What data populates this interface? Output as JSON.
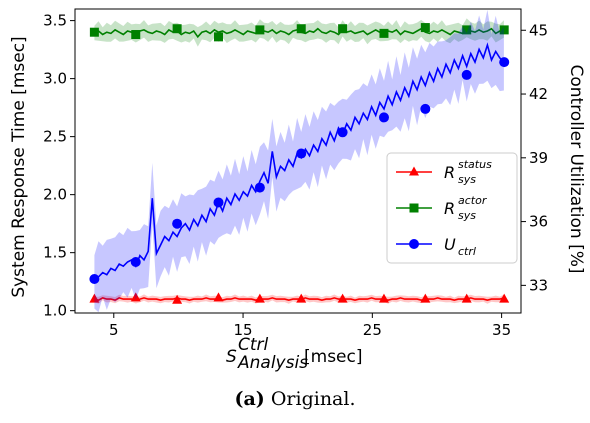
{
  "caption": {
    "label": "(a)",
    "text": "Original."
  },
  "chart_data": {
    "type": "line",
    "xlabel": {
      "main": "S",
      "sup": "Ctrl",
      "sub": "Analysis",
      "unit": "[msec]"
    },
    "ylabel_left": "System Response Time [msec]",
    "ylabel_right": "Controller Utilization [%]",
    "xlim": [
      2.0,
      36.5
    ],
    "ylim_left": [
      0.98,
      3.6
    ],
    "ylim_right": [
      31.7,
      46.0
    ],
    "xticks": [
      5,
      15,
      25,
      35
    ],
    "yticks_left": [
      "1.0",
      "1.5",
      "2.0",
      "2.5",
      "3.0",
      "3.5"
    ],
    "yticks_right": [
      "33",
      "36",
      "39",
      "42",
      "45"
    ],
    "legend_position": "center-right",
    "grid": false,
    "series": [
      {
        "name": "R",
        "name_sub": "sys",
        "name_sup": "status",
        "axis": "left",
        "color": "#ff0000",
        "marker": "triangle",
        "band_halfwidth": 0.025,
        "x_start": 3.5,
        "x_step": 0.32,
        "values": [
          1.1,
          1.09,
          1.11,
          1.1,
          1.1,
          1.09,
          1.11,
          1.1,
          1.1,
          1.1,
          1.09,
          1.1,
          1.11,
          1.1,
          1.1,
          1.1,
          1.09,
          1.1,
          1.1,
          1.1,
          1.11,
          1.1,
          1.1,
          1.09,
          1.1,
          1.1,
          1.1,
          1.11,
          1.1,
          1.1,
          1.1,
          1.09,
          1.1,
          1.1,
          1.11,
          1.1,
          1.1,
          1.1,
          1.1,
          1.09,
          1.1,
          1.1,
          1.1,
          1.11,
          1.1,
          1.1,
          1.1,
          1.09,
          1.1,
          1.1,
          1.1,
          1.11,
          1.1,
          1.1,
          1.1,
          1.09,
          1.1,
          1.1,
          1.11,
          1.1,
          1.1,
          1.1,
          1.1,
          1.09,
          1.1,
          1.1,
          1.1,
          1.11,
          1.1,
          1.1,
          1.1,
          1.09,
          1.1,
          1.1,
          1.11,
          1.1,
          1.1,
          1.1,
          1.1,
          1.09,
          1.1,
          1.1,
          1.1,
          1.11,
          1.1,
          1.1,
          1.1,
          1.09,
          1.1,
          1.1,
          1.1,
          1.11,
          1.1,
          1.1,
          1.1,
          1.09,
          1.1,
          1.1,
          1.1,
          1.11
        ],
        "markers_x": [
          3.5,
          6.7,
          9.9,
          13.1,
          16.3,
          19.5,
          22.7,
          25.9,
          29.1,
          32.3,
          35.2
        ],
        "markers_y": [
          1.1,
          1.11,
          1.09,
          1.11,
          1.1,
          1.1,
          1.1,
          1.1,
          1.1,
          1.1,
          1.1
        ]
      },
      {
        "name": "R",
        "name_sub": "sys",
        "name_sup": "actor",
        "axis": "left",
        "color": "#008000",
        "marker": "square",
        "band_halfwidth": 0.07,
        "x_start": 3.5,
        "x_step": 0.32,
        "values": [
          3.4,
          3.41,
          3.38,
          3.4,
          3.39,
          3.42,
          3.4,
          3.38,
          3.41,
          3.4,
          3.39,
          3.41,
          3.42,
          3.4,
          3.39,
          3.41,
          3.4,
          3.38,
          3.42,
          3.4,
          3.41,
          3.38,
          3.4,
          3.39,
          3.41,
          3.36,
          3.4,
          3.41,
          3.39,
          3.42,
          3.4,
          3.41,
          3.39,
          3.4,
          3.42,
          3.4,
          3.38,
          3.41,
          3.4,
          3.39,
          3.43,
          3.41,
          3.4,
          3.42,
          3.39,
          3.41,
          3.4,
          3.38,
          3.41,
          3.42,
          3.4,
          3.39,
          3.41,
          3.4,
          3.43,
          3.4,
          3.39,
          3.41,
          3.4,
          3.38,
          3.42,
          3.4,
          3.41,
          3.39,
          3.4,
          3.41,
          3.38,
          3.4,
          3.42,
          3.4,
          3.39,
          3.41,
          3.4,
          3.42,
          3.38,
          3.41,
          3.4,
          3.39,
          3.41,
          3.43,
          3.4,
          3.39,
          3.41,
          3.4,
          3.42,
          3.4,
          3.38,
          3.41,
          3.4,
          3.39,
          3.44,
          3.41,
          3.4,
          3.42,
          3.4,
          3.41,
          3.43,
          3.39,
          3.41,
          3.42
        ],
        "markers_x": [
          3.5,
          6.7,
          9.9,
          13.1,
          16.3,
          19.5,
          22.7,
          25.9,
          29.1,
          32.3,
          35.2
        ],
        "markers_y": [
          3.4,
          3.38,
          3.43,
          3.36,
          3.42,
          3.43,
          3.43,
          3.39,
          3.44,
          3.42,
          3.42
        ]
      },
      {
        "name": "U",
        "name_sub": "ctrl",
        "name_sup": "",
        "axis": "right",
        "color": "#0000ff",
        "marker": "circle",
        "band_halfwidth": 1.4,
        "x_start": 3.5,
        "x_step": 0.32,
        "values": [
          33.3,
          33.4,
          33.6,
          33.5,
          33.8,
          33.7,
          34.0,
          33.9,
          34.1,
          34.2,
          33.9,
          34.4,
          34.2,
          34.6,
          37.1,
          34.5,
          34.9,
          35.3,
          35.1,
          35.5,
          35.3,
          35.7,
          35.9,
          35.6,
          36.1,
          35.8,
          36.3,
          36.0,
          36.6,
          36.3,
          36.9,
          36.5,
          37.1,
          36.8,
          37.3,
          37.0,
          37.4,
          37.2,
          37.7,
          37.4,
          37.9,
          38.3,
          37.8,
          39.3,
          38.1,
          38.6,
          38.4,
          38.9,
          38.6,
          39.2,
          39.0,
          39.4,
          39.1,
          39.6,
          39.3,
          39.9,
          39.6,
          40.2,
          39.8,
          40.4,
          40.1,
          40.6,
          40.3,
          40.9,
          40.6,
          41.1,
          40.8,
          41.4,
          41.0,
          41.6,
          41.3,
          41.9,
          41.5,
          42.1,
          41.7,
          42.3,
          41.9,
          42.6,
          42.2,
          42.8,
          42.4,
          43.0,
          42.6,
          43.2,
          42.8,
          43.4,
          43.0,
          43.6,
          43.2,
          43.8,
          43.3,
          43.9,
          43.5,
          44.1,
          43.7,
          44.3,
          43.6,
          44.0,
          43.7,
          43.5
        ],
        "markers_x": [
          3.5,
          6.7,
          9.9,
          13.1,
          16.3,
          19.5,
          22.7,
          25.9,
          29.1,
          32.3,
          35.2
        ],
        "markers_y": [
          33.3,
          34.1,
          35.9,
          36.9,
          37.6,
          39.2,
          40.2,
          40.9,
          41.3,
          42.9,
          43.5
        ]
      }
    ]
  }
}
